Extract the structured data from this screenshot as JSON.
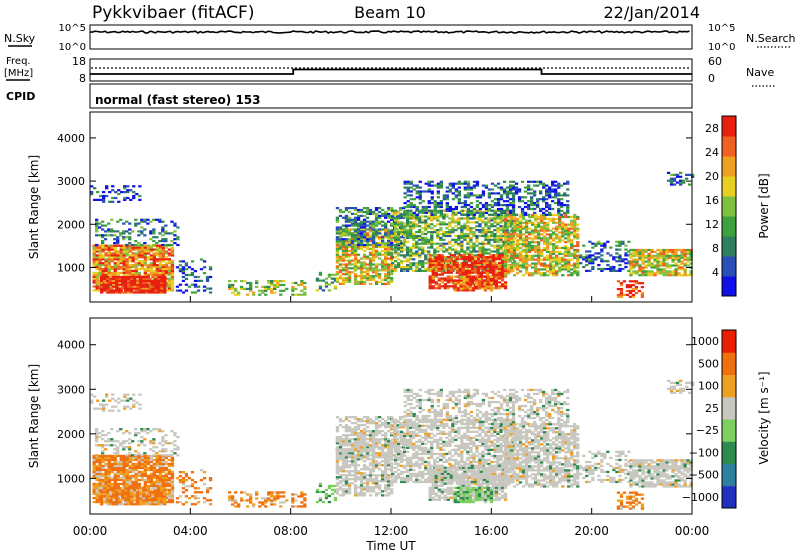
{
  "header": {
    "station": "Pykkvibaer (fitACF)",
    "beam": "Beam 10",
    "date": "22/Jan/2014"
  },
  "nsky_panel": {
    "left_label": "N.Sky",
    "right_label": "N.Search",
    "left_ticks": [
      "10^5",
      "10^0"
    ],
    "right_ticks": [
      "10^5",
      "10^0"
    ]
  },
  "freq_panel": {
    "left_label_line1": "Freq.",
    "left_label_line2": "[MHz]",
    "left_ticks": [
      "18",
      "8"
    ],
    "right_label": "Nave",
    "right_ticks": [
      "60",
      "0"
    ]
  },
  "cpid_panel": {
    "label": "CPID",
    "text": "normal (fast stereo) 153"
  },
  "chart_data": [
    {
      "type": "heatmap",
      "name": "power",
      "ylabel": "Slant Range [km]",
      "xlabel": "",
      "y_ticks": [
        "1000",
        "2000",
        "3000",
        "4000"
      ],
      "ylim": [
        200,
        4600
      ],
      "xlim_hours": [
        0,
        24
      ],
      "colorbar": {
        "label": "Power [dB]",
        "ticks": [
          "4",
          "8",
          "12",
          "16",
          "20",
          "24",
          "28"
        ],
        "range": [
          0,
          30
        ],
        "colors": [
          "#1010e8",
          "#2a50b8",
          "#2f7e5e",
          "#3fa040",
          "#7fc040",
          "#e8d020",
          "#f0a020",
          "#f06020",
          "#e82010"
        ]
      }
    },
    {
      "type": "heatmap",
      "name": "velocity",
      "ylabel": "Slant Range [km]",
      "xlabel": "Time UT",
      "y_ticks": [
        "1000",
        "2000",
        "3000",
        "4000"
      ],
      "ylim": [
        200,
        4600
      ],
      "xlim_hours": [
        0,
        24
      ],
      "x_ticks": [
        "00:00",
        "04:00",
        "08:00",
        "12:00",
        "16:00",
        "20:00",
        "00:00"
      ],
      "colorbar": {
        "label": "Velocity [m s⁻¹]",
        "ticks": [
          "1000",
          "500",
          "100",
          "25",
          "−25",
          "−100",
          "−500",
          "−1000"
        ],
        "colors": [
          "#2030c0",
          "#2e7fa0",
          "#2f8a50",
          "#7cd060",
          "#c8c8c0",
          "#f0a020",
          "#f07010",
          "#e82000"
        ]
      }
    }
  ]
}
